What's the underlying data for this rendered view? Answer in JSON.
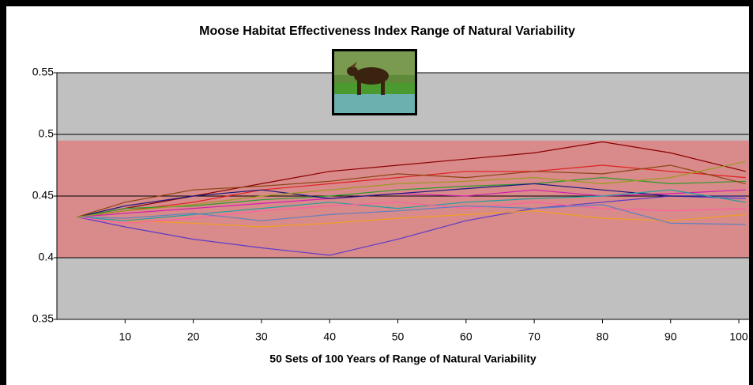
{
  "chart_data": {
    "type": "line",
    "title": "Moose Habitat Effectiveness Index Range of Natural Variability",
    "x_label": "50 Sets of 100 Years of Range of Natural Variability",
    "x": [
      3,
      10,
      20,
      30,
      40,
      50,
      60,
      70,
      80,
      90,
      101
    ],
    "xlim": [
      0,
      101.5
    ],
    "xticks": [
      10,
      20,
      30,
      40,
      50,
      60,
      70,
      80,
      90,
      100
    ],
    "ylim": [
      0.35,
      0.55
    ],
    "yticks": [
      0.35,
      0.4,
      0.45,
      0.5,
      0.55
    ],
    "grid": true,
    "background_color": "#c0c0c0",
    "reference_band": {
      "ylim": [
        0.4,
        0.495
      ],
      "color": "#d98a8a"
    },
    "series": [
      {
        "color": "#8b0000",
        "values": [
          0.433,
          0.44,
          0.45,
          0.46,
          0.47,
          0.475,
          0.48,
          0.485,
          0.494,
          0.485,
          0.47
        ]
      },
      {
        "color": "#e02020",
        "values": [
          0.433,
          0.438,
          0.445,
          0.455,
          0.46,
          0.465,
          0.47,
          0.47,
          0.475,
          0.47,
          0.465
        ]
      },
      {
        "color": "#5a3cc8",
        "values": [
          0.433,
          0.425,
          0.415,
          0.408,
          0.402,
          0.415,
          0.43,
          0.44,
          0.445,
          0.45,
          0.448
        ]
      },
      {
        "color": "#f0a020",
        "values": [
          0.433,
          0.43,
          0.428,
          0.425,
          0.428,
          0.432,
          0.435,
          0.438,
          0.432,
          0.43,
          0.435
        ]
      },
      {
        "color": "#2e9a2e",
        "values": [
          0.433,
          0.44,
          0.442,
          0.447,
          0.45,
          0.455,
          0.458,
          0.46,
          0.465,
          0.46,
          0.462
        ]
      },
      {
        "color": "#d020b0",
        "values": [
          0.433,
          0.436,
          0.44,
          0.444,
          0.448,
          0.452,
          0.45,
          0.455,
          0.45,
          0.452,
          0.455
        ]
      },
      {
        "color": "#1a1a80",
        "values": [
          0.433,
          0.442,
          0.45,
          0.455,
          0.448,
          0.452,
          0.456,
          0.46,
          0.455,
          0.45,
          0.45
        ]
      },
      {
        "color": "#20a0a0",
        "values": [
          0.433,
          0.43,
          0.435,
          0.44,
          0.445,
          0.44,
          0.445,
          0.448,
          0.45,
          0.455,
          0.445
        ]
      },
      {
        "color": "#ff60a0",
        "values": [
          0.433,
          0.428,
          0.432,
          0.438,
          0.442,
          0.445,
          0.44,
          0.445,
          0.44,
          0.438,
          0.44
        ]
      },
      {
        "color": "#8b4513",
        "values": [
          0.433,
          0.445,
          0.455,
          0.458,
          0.462,
          0.468,
          0.465,
          0.47,
          0.468,
          0.475,
          0.46
        ]
      },
      {
        "color": "#6080c0",
        "values": [
          0.433,
          0.432,
          0.436,
          0.43,
          0.435,
          0.438,
          0.442,
          0.44,
          0.443,
          0.428,
          0.427
        ]
      },
      {
        "color": "#9a9a20",
        "values": [
          0.433,
          0.438,
          0.443,
          0.45,
          0.455,
          0.46,
          0.462,
          0.465,
          0.46,
          0.465,
          0.478
        ]
      }
    ]
  }
}
